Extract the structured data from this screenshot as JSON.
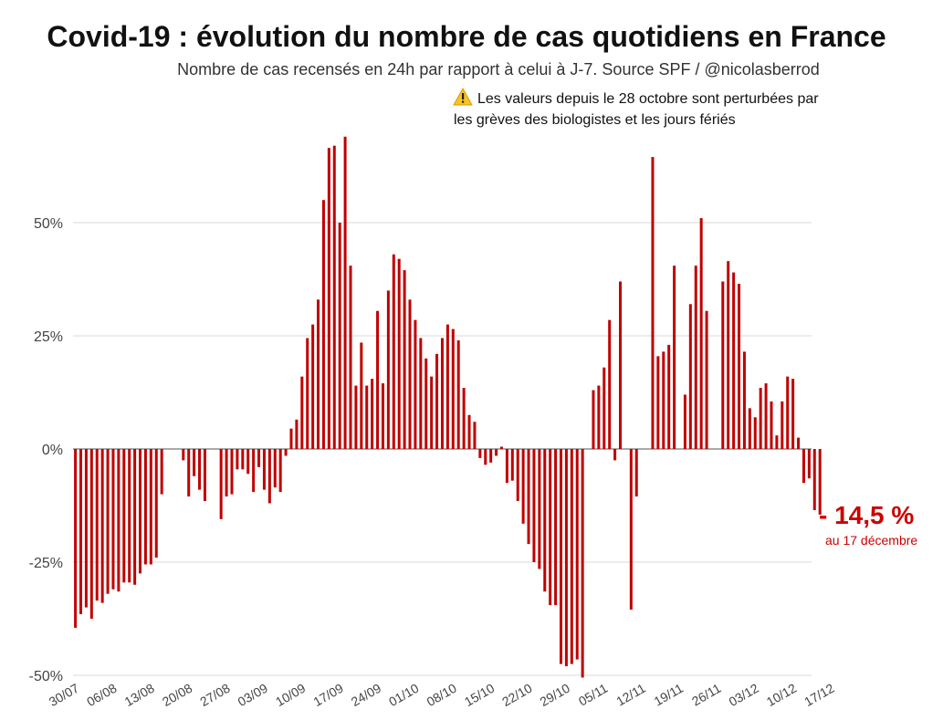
{
  "title": "Covid-19 : évolution du nombre de cas quotidiens en France",
  "subtitle": "Nombre de cas recensés en 24h par rapport à celui à J-7. Source SPF / @nicolasberrod",
  "note": {
    "icon": "warning-icon",
    "line1": "Les valeurs depuis le 28 octobre sont perturbées par",
    "line2": "les grèves des biologistes et les jours fériés"
  },
  "callout": {
    "value": "- 14,5 %",
    "date": "au 17 décembre"
  },
  "colors": {
    "bar": "#c00000",
    "callout": "#cc0000",
    "grid": "#d9d9d9"
  },
  "chart_data": {
    "type": "bar",
    "title": "Covid-19 : évolution du nombre de cas quotidiens en France",
    "subtitle": "Nombre de cas recensés en 24h par rapport à celui à J-7. Source SPF / @nicolasberrod",
    "ylim": [
      -50,
      70
    ],
    "yticks": [
      -50,
      -25,
      0,
      25,
      50
    ],
    "ytick_labels": [
      "-50%",
      "-25%",
      "0%",
      "25%",
      "50%"
    ],
    "grid": true,
    "x_tick_labels": [
      "30/07",
      "06/08",
      "13/08",
      "20/08",
      "27/08",
      "03/09",
      "10/09",
      "17/09",
      "24/09",
      "01/10",
      "08/10",
      "15/10",
      "22/10",
      "29/10",
      "05/11",
      "12/11",
      "19/11",
      "26/11",
      "03/12",
      "10/12",
      "17/12"
    ],
    "x_start": "2020-07-30",
    "values": [
      -39.5,
      -36.5,
      -35,
      -37.5,
      -33.5,
      -34,
      -32,
      -31,
      -31.5,
      -29.5,
      -29.5,
      -30,
      -27.5,
      -25.5,
      -25.5,
      -24,
      -10,
      null,
      null,
      null,
      -2.5,
      -10.5,
      -6,
      -9,
      -11.5,
      null,
      null,
      -15.5,
      -10.5,
      -10,
      -4.5,
      -4.5,
      -5.5,
      -9.5,
      -4,
      -9,
      -12,
      -8.5,
      -9.5,
      -1.5,
      4.5,
      6.5,
      16,
      24.5,
      27.5,
      33,
      55,
      66.5,
      67,
      50,
      69,
      40.5,
      14,
      23.5,
      14,
      15.5,
      30.5,
      14.5,
      35,
      43,
      42,
      39.5,
      33,
      28.5,
      24.5,
      20,
      16,
      21,
      24.5,
      27.5,
      26.5,
      24,
      13.5,
      7.5,
      6,
      -2,
      -3.5,
      -3,
      -1.5,
      0.5,
      -7.5,
      -7,
      -11.5,
      -16.5,
      -21,
      -25,
      -26.5,
      -31.5,
      -34.5,
      -34.5,
      -47.5,
      -48,
      -47.5,
      -46.5,
      -50.5,
      null,
      13,
      14,
      18,
      28.5,
      -2.5,
      37,
      null,
      -35.5,
      -10.5,
      null,
      null,
      64.5,
      20.5,
      21.5,
      23,
      40.5,
      null,
      12,
      32,
      40.5,
      51,
      30.5,
      null,
      null,
      37,
      41.5,
      39,
      36.5,
      21.5,
      9,
      7,
      13.5,
      14.5,
      10.5,
      3,
      10.5,
      16,
      15.5,
      2.5,
      -7.5,
      -6.5,
      -13.5,
      -14.5
    ]
  }
}
